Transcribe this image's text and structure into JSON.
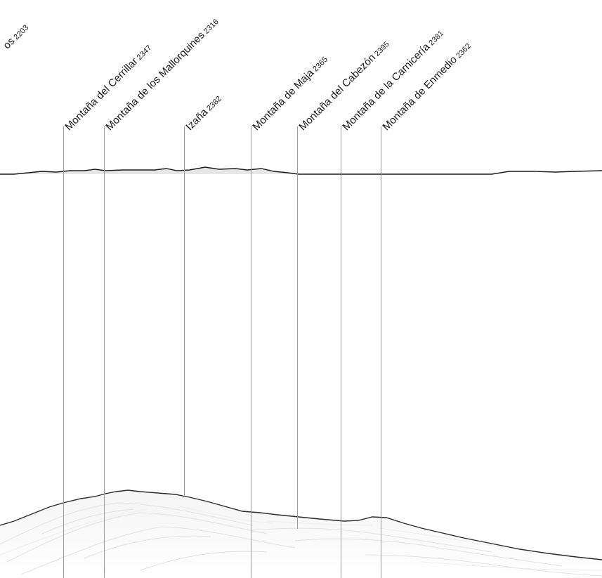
{
  "peaks": [
    {
      "name": "os",
      "elevation": "2203"
    },
    {
      "name": "Montaña del Cerrillar",
      "elevation": "2347"
    },
    {
      "name": "Montaña de los Mallorquines",
      "elevation": "2316"
    },
    {
      "name": "Izaña",
      "elevation": "2382"
    },
    {
      "name": "Montaña de Maja",
      "elevation": "2365"
    },
    {
      "name": "Montaña del Cabezón",
      "elevation": "2395"
    },
    {
      "name": "Montaña de la Carnicería",
      "elevation": "2381"
    },
    {
      "name": "Montaña de Enmedio",
      "elevation": "2362"
    }
  ]
}
